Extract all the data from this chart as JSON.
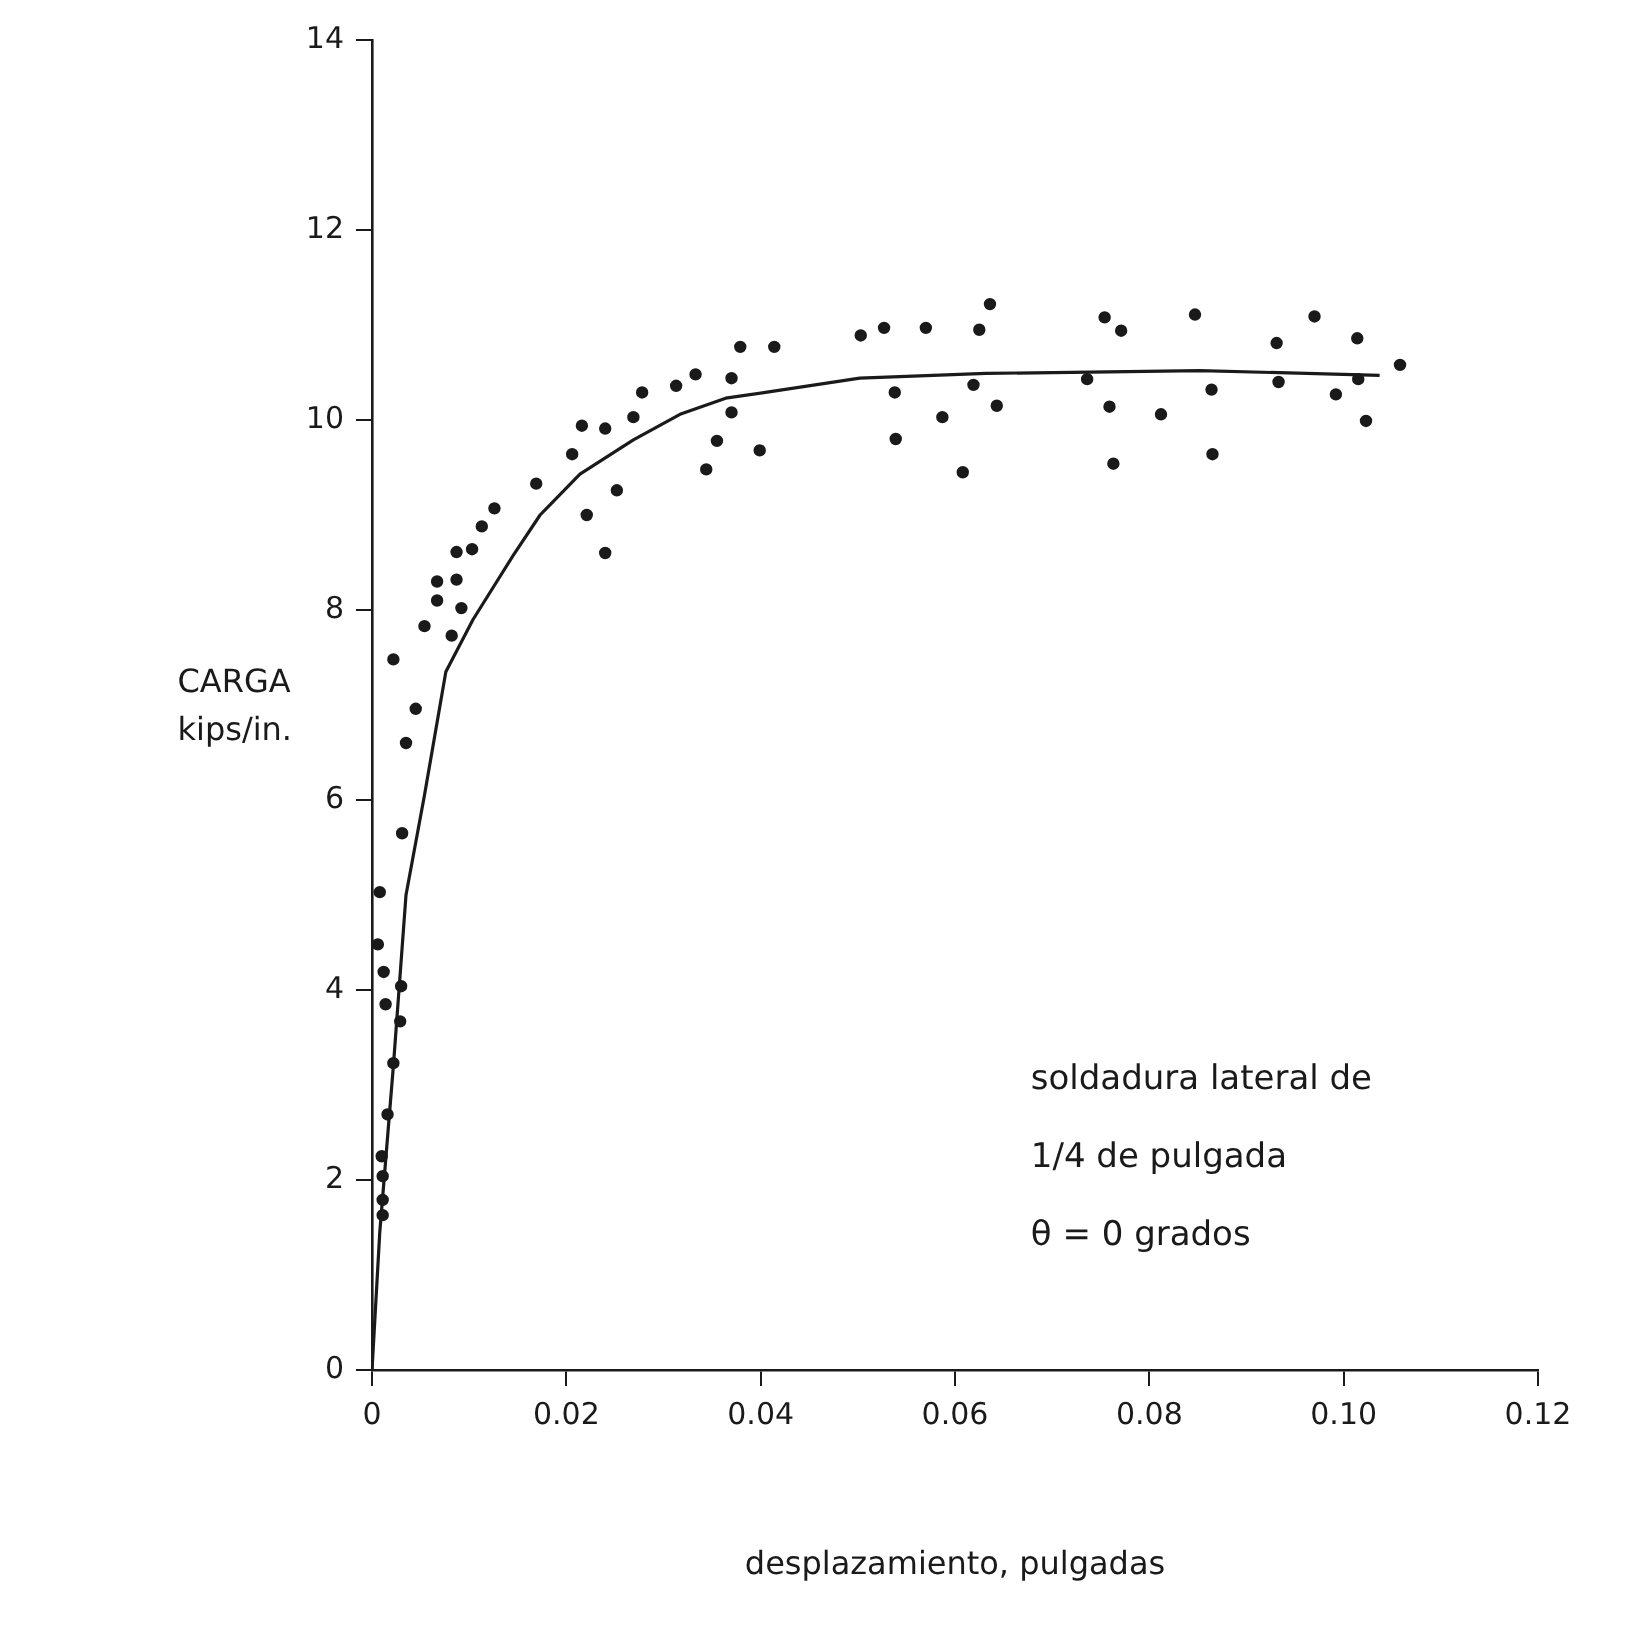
{
  "chart_data": {
    "type": "scatter",
    "xlabel": "desplazamiento, pulgadas",
    "ylabel": "CARGA\nkips/in.",
    "annotations": [
      "soldadura lateral de",
      "1/4 de pulgada",
      "θ = 0 grados"
    ],
    "xlim": [
      0,
      0.12
    ],
    "xticks": [
      {
        "value": 0,
        "label": "0"
      },
      0.02,
      0.04,
      0.06,
      0.08,
      {
        "value": 0.1,
        "label": "0.10"
      },
      0.12
    ],
    "ylim": [
      0,
      14
    ],
    "yticks": [
      0,
      2,
      4,
      6,
      8,
      10,
      12,
      14
    ],
    "grid": false,
    "legend": false,
    "marker": "circle",
    "series": [
      {
        "color": "#1a1a1a",
        "x": [
          0.0011,
          0.0011,
          0.0011,
          0.001,
          0.0016,
          0.0022,
          0.0029,
          0.0014,
          0.003,
          0.0012,
          0.0006,
          0.0008,
          0.0031,
          0.0022,
          0.0035,
          0.0045,
          0.0054,
          0.0067,
          0.0067,
          0.0082,
          0.0087,
          0.0087,
          0.0092,
          0.0103,
          0.0113,
          0.0126,
          0.0169,
          0.0206,
          0.0216,
          0.0221,
          0.024,
          0.024,
          0.0252,
          0.0269,
          0.0278,
          0.0313,
          0.0333,
          0.0344,
          0.0355,
          0.037,
          0.037,
          0.0379,
          0.0399,
          0.0414,
          0.0503,
          0.0527,
          0.0538,
          0.0539,
          0.057,
          0.0587,
          0.0608,
          0.0619,
          0.0625,
          0.0636,
          0.0643,
          0.0736,
          0.0754,
          0.0759,
          0.0763,
          0.0771,
          0.0812,
          0.0847,
          0.0864,
          0.0865,
          0.0931,
          0.0933,
          0.097,
          0.0992,
          0.1014,
          0.1015,
          0.1023,
          0.1058
        ],
        "values": [
          1.63,
          1.79,
          2.04,
          2.25,
          2.69,
          3.23,
          3.67,
          3.85,
          4.04,
          4.19,
          4.48,
          5.03,
          5.65,
          7.48,
          6.6,
          6.96,
          7.83,
          8.1,
          8.3,
          7.73,
          8.32,
          8.61,
          8.02,
          8.64,
          8.88,
          9.07,
          9.33,
          9.64,
          9.94,
          9.0,
          9.91,
          8.6,
          9.26,
          10.03,
          10.29,
          10.36,
          10.48,
          9.48,
          9.78,
          10.08,
          10.44,
          10.77,
          9.68,
          10.77,
          10.89,
          10.97,
          10.29,
          9.8,
          10.97,
          10.03,
          9.45,
          10.37,
          10.95,
          11.22,
          10.15,
          10.43,
          11.08,
          10.14,
          9.54,
          10.94,
          10.06,
          11.11,
          10.32,
          9.64,
          10.81,
          10.4,
          11.09,
          10.27,
          10.86,
          10.43,
          9.99,
          10.58
        ]
      },
      {
        "type": "line",
        "color": "#1a1a1a",
        "marker": "none",
        "line_style": "solid",
        "x": [
          0,
          0.0008,
          0.0022,
          0.0035,
          0.0054,
          0.0076,
          0.0104,
          0.0145,
          0.0173,
          0.0214,
          0.0269,
          0.0317,
          0.0364,
          0.0405,
          0.0502,
          0.0632,
          0.0852,
          0.1037
        ],
        "values": [
          0,
          1.45,
          3.2,
          5.0,
          6.05,
          7.35,
          7.9,
          8.57,
          9.0,
          9.43,
          9.79,
          10.06,
          10.23,
          10.29,
          10.44,
          10.49,
          10.52,
          10.47
        ]
      }
    ]
  }
}
